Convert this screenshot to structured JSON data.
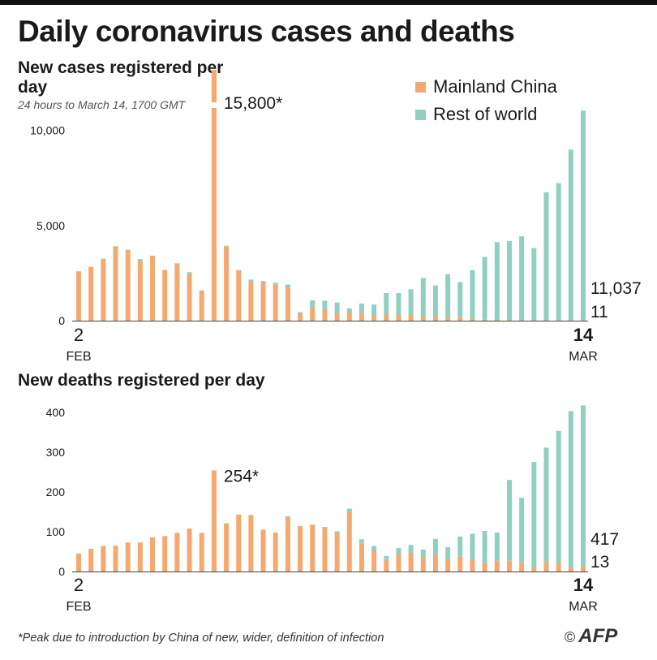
{
  "title": "Daily coronavirus cases and deaths",
  "legend": {
    "items": [
      {
        "label": "Mainland China",
        "color": "#f5a86f"
      },
      {
        "label": "Rest of world",
        "color": "#8fd0c1"
      }
    ]
  },
  "footnote": "*Peak due to introduction by China of new, wider, definition of infection",
  "credit": {
    "symbol": "©",
    "logo_text": "AFP"
  },
  "chart_data": [
    {
      "type": "bar",
      "stacked": true,
      "title": "New cases registered per day",
      "subtitle": "24 hours to March 14, 1700 GMT",
      "x_start_label": "2",
      "x_start_month": "FEB",
      "x_end_label": "14",
      "x_end_month": "MAR",
      "ylim": [
        0,
        10500
      ],
      "yticks": [
        0,
        5000,
        10000
      ],
      "ytick_labels": [
        "0",
        "5,000",
        "10,000"
      ],
      "break": {
        "index": 11,
        "shown_max": 13000
      },
      "peak_label": "15,800*",
      "end_label_total": "11,037",
      "end_label_china": "11",
      "series": [
        {
          "name": "Mainland China",
          "values": [
            2590,
            2820,
            3240,
            3890,
            3700,
            3140,
            3390,
            2650,
            2990,
            2450,
            1560,
            15800,
            3890,
            2640,
            2010,
            2050,
            1890,
            1750,
            400,
            700,
            600,
            400,
            450,
            400,
            250,
            300,
            300,
            300,
            200,
            250,
            150,
            180,
            100,
            50,
            40,
            40,
            30,
            20,
            20,
            30,
            15,
            11
          ]
        },
        {
          "name": "Rest of world",
          "values": [
            10,
            15,
            20,
            30,
            30,
            100,
            30,
            20,
            30,
            100,
            30,
            50,
            50,
            20,
            150,
            30,
            100,
            150,
            50,
            370,
            450,
            550,
            200,
            500,
            600,
            1150,
            1150,
            1350,
            2040,
            1600,
            2290,
            1850,
            2550,
            3300,
            4090,
            4150,
            4400,
            3800,
            6730,
            7200,
            8980,
            11026
          ]
        }
      ]
    },
    {
      "type": "bar",
      "stacked": true,
      "title": "New deaths registered per day",
      "x_start_label": "2",
      "x_start_month": "FEB",
      "x_end_label": "14",
      "x_end_month": "MAR",
      "ylim": [
        0,
        420
      ],
      "yticks": [
        0,
        100,
        200,
        300,
        400
      ],
      "ytick_labels": [
        "0",
        "100",
        "200",
        "300",
        "400"
      ],
      "peak_index": 11,
      "peak_label": "254*",
      "end_label_total": "417",
      "end_label_china": "13",
      "series": [
        {
          "name": "Mainland China",
          "values": [
            45,
            57,
            64,
            65,
            73,
            73,
            86,
            89,
            97,
            108,
            97,
            254,
            121,
            143,
            142,
            105,
            98,
            136,
            114,
            118,
            109,
            97,
            150,
            71,
            52,
            29,
            44,
            47,
            35,
            42,
            31,
            38,
            30,
            22,
            28,
            27,
            22,
            10,
            24,
            22,
            11,
            13
          ]
        },
        {
          "name": "Rest of world",
          "values": [
            0,
            0,
            0,
            0,
            0,
            0,
            0,
            0,
            0,
            0,
            0,
            0,
            0,
            0,
            0,
            0,
            0,
            3,
            0,
            0,
            3,
            4,
            8,
            10,
            12,
            10,
            15,
            20,
            20,
            40,
            30,
            50,
            65,
            80,
            70,
            203,
            163,
            265,
            287,
            331,
            392,
            404
          ]
        }
      ]
    }
  ]
}
